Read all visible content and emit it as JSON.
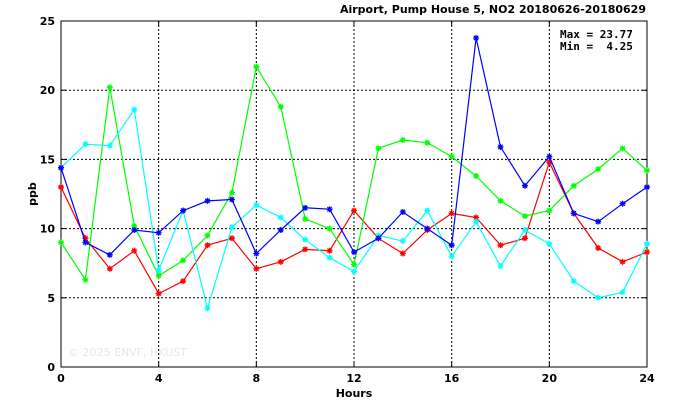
{
  "chart_data": {
    "type": "line",
    "title": "Airport, Pump House 5, NO2 20180626-20180629",
    "xlabel": "Hours",
    "ylabel": "ppb",
    "xlim": [
      0,
      24
    ],
    "ylim": [
      0,
      25
    ],
    "x_ticks": [
      0,
      4,
      8,
      12,
      16,
      20,
      24
    ],
    "y_ticks": [
      0,
      5,
      10,
      15,
      20,
      25
    ],
    "x_tick_labels": [
      "0",
      "4",
      "8",
      "12",
      "16",
      "20",
      "24"
    ],
    "y_tick_labels": [
      "0",
      "5",
      "10",
      "15",
      "20",
      "25"
    ],
    "grid": true,
    "marker": "asterisk",
    "x": [
      0,
      1,
      2,
      3,
      4,
      5,
      6,
      7,
      8,
      9,
      10,
      11,
      12,
      13,
      14,
      15,
      16,
      17,
      18,
      19,
      20,
      21,
      22,
      23,
      24
    ],
    "stats": {
      "max_text": "Max = 23.77",
      "min_text": "Min =  4.25"
    },
    "watermark": "© 2025  ENVF, HKUST",
    "series": [
      {
        "color": "#ff0000",
        "values": [
          13.0,
          9.3,
          7.1,
          8.4,
          5.3,
          6.2,
          8.8,
          9.3,
          7.1,
          7.6,
          8.5,
          8.4,
          11.3,
          9.3,
          8.2,
          9.9,
          11.1,
          10.8,
          8.8,
          9.3,
          14.8,
          11.1,
          8.6,
          7.6,
          8.3
        ]
      },
      {
        "color": "#00ff00",
        "values": [
          9.0,
          6.3,
          20.2,
          10.2,
          6.6,
          7.7,
          9.5,
          12.6,
          21.7,
          18.8,
          10.7,
          10.0,
          7.4,
          15.8,
          16.4,
          16.2,
          15.2,
          13.8,
          12.0,
          10.9,
          11.3,
          13.1,
          14.3,
          15.8,
          14.2
        ]
      },
      {
        "color": "#00ffff",
        "values": [
          14.4,
          16.1,
          16.0,
          18.6,
          7.0,
          11.3,
          4.25,
          10.1,
          11.7,
          10.8,
          9.2,
          7.9,
          6.9,
          9.5,
          9.1,
          11.3,
          8.0,
          10.5,
          7.3,
          9.9,
          8.9,
          6.2,
          5.0,
          5.4,
          8.9
        ]
      },
      {
        "color": "#0000ff",
        "values": [
          14.4,
          9.0,
          8.1,
          9.9,
          9.7,
          11.3,
          12.0,
          12.1,
          8.2,
          9.9,
          11.5,
          11.4,
          8.3,
          9.3,
          11.2,
          10.0,
          8.8,
          23.77,
          15.9,
          13.1,
          15.2,
          11.1,
          10.5,
          11.8,
          13.0
        ]
      }
    ]
  }
}
